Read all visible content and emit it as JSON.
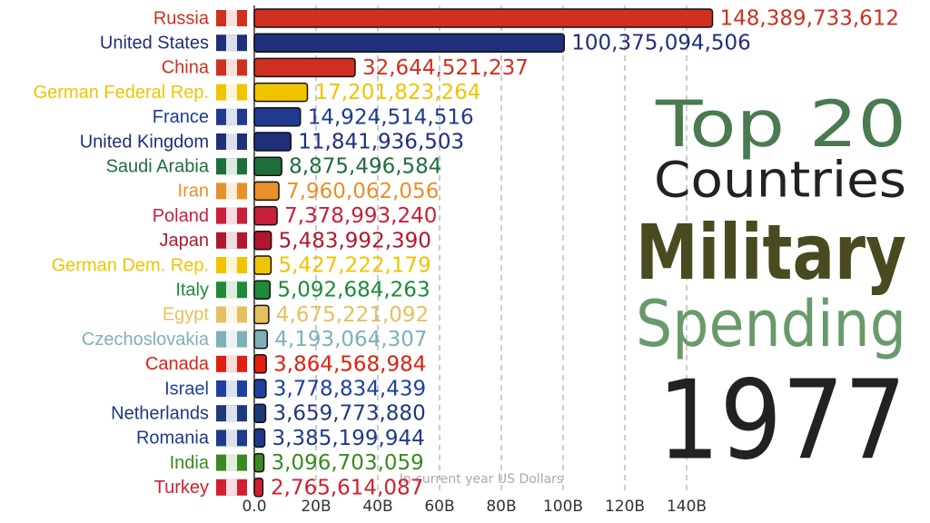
{
  "chart_data": {
    "type": "bar",
    "title": [
      "Top 20",
      "Countries",
      "Military",
      "Spending"
    ],
    "year": "1977",
    "xlabel": "In current year US Dollars",
    "categories": [
      "Russia",
      "United States",
      "China",
      "German Federal Rep.",
      "France",
      "United Kingdom",
      "Saudi Arabia",
      "Iran",
      "Poland",
      "Japan",
      "German Dem. Rep.",
      "Italy",
      "Egypt",
      "Czechoslovakia",
      "Canada",
      "Israel",
      "Netherlands",
      "Romania",
      "India",
      "Turkey"
    ],
    "values": [
      148389733612,
      100375094506,
      32644521237,
      17201823264,
      14924514516,
      11841936503,
      8875496584,
      7960062056,
      7378993240,
      5483992390,
      5427222179,
      5092684263,
      4675221092,
      4193064307,
      3864568984,
      3778834439,
      3659773880,
      3385199944,
      3096703059,
      2765614087
    ],
    "value_labels": [
      "148,389,733,612",
      "100,375,094,506",
      "32,644,521,237",
      "17,201,823,264",
      "14,924,514,516",
      "11,841,936,503",
      "8,875,496,584",
      "7,960,062,056",
      "7,378,993,240",
      "5,483,992,390",
      "5,427,222,179",
      "5,092,684,263",
      "4,675,221,092",
      "4,193,064,307",
      "3,864,568,984",
      "3,778,834,439",
      "3,659,773,880",
      "3,385,199,944",
      "3,096,703,059",
      "2,765,614,087"
    ],
    "colors": [
      "#d0301f",
      "#1f2f7a",
      "#d0301f",
      "#f0c400",
      "#1f3a8f",
      "#1f2f7a",
      "#1f6e3a",
      "#e8902a",
      "#c8203a",
      "#b01830",
      "#f0c400",
      "#1f8a3a",
      "#e6c060",
      "#7fb0b8",
      "#e02010",
      "#2040a0",
      "#1f3a7a",
      "#1f3a8a",
      "#3a8a20",
      "#d02030"
    ],
    "xlim": [
      0,
      150000000000
    ],
    "xticks": [
      {
        "value": 0,
        "label": "0.0"
      },
      {
        "value": 20000000000,
        "label": "20B"
      },
      {
        "value": 40000000000,
        "label": "40B"
      },
      {
        "value": 60000000000,
        "label": "60B"
      },
      {
        "value": 80000000000,
        "label": "80B"
      },
      {
        "value": 100000000000,
        "label": "100B"
      },
      {
        "value": 120000000000,
        "label": "120B"
      },
      {
        "value": 140000000000,
        "label": "140B"
      }
    ],
    "grid": true
  }
}
